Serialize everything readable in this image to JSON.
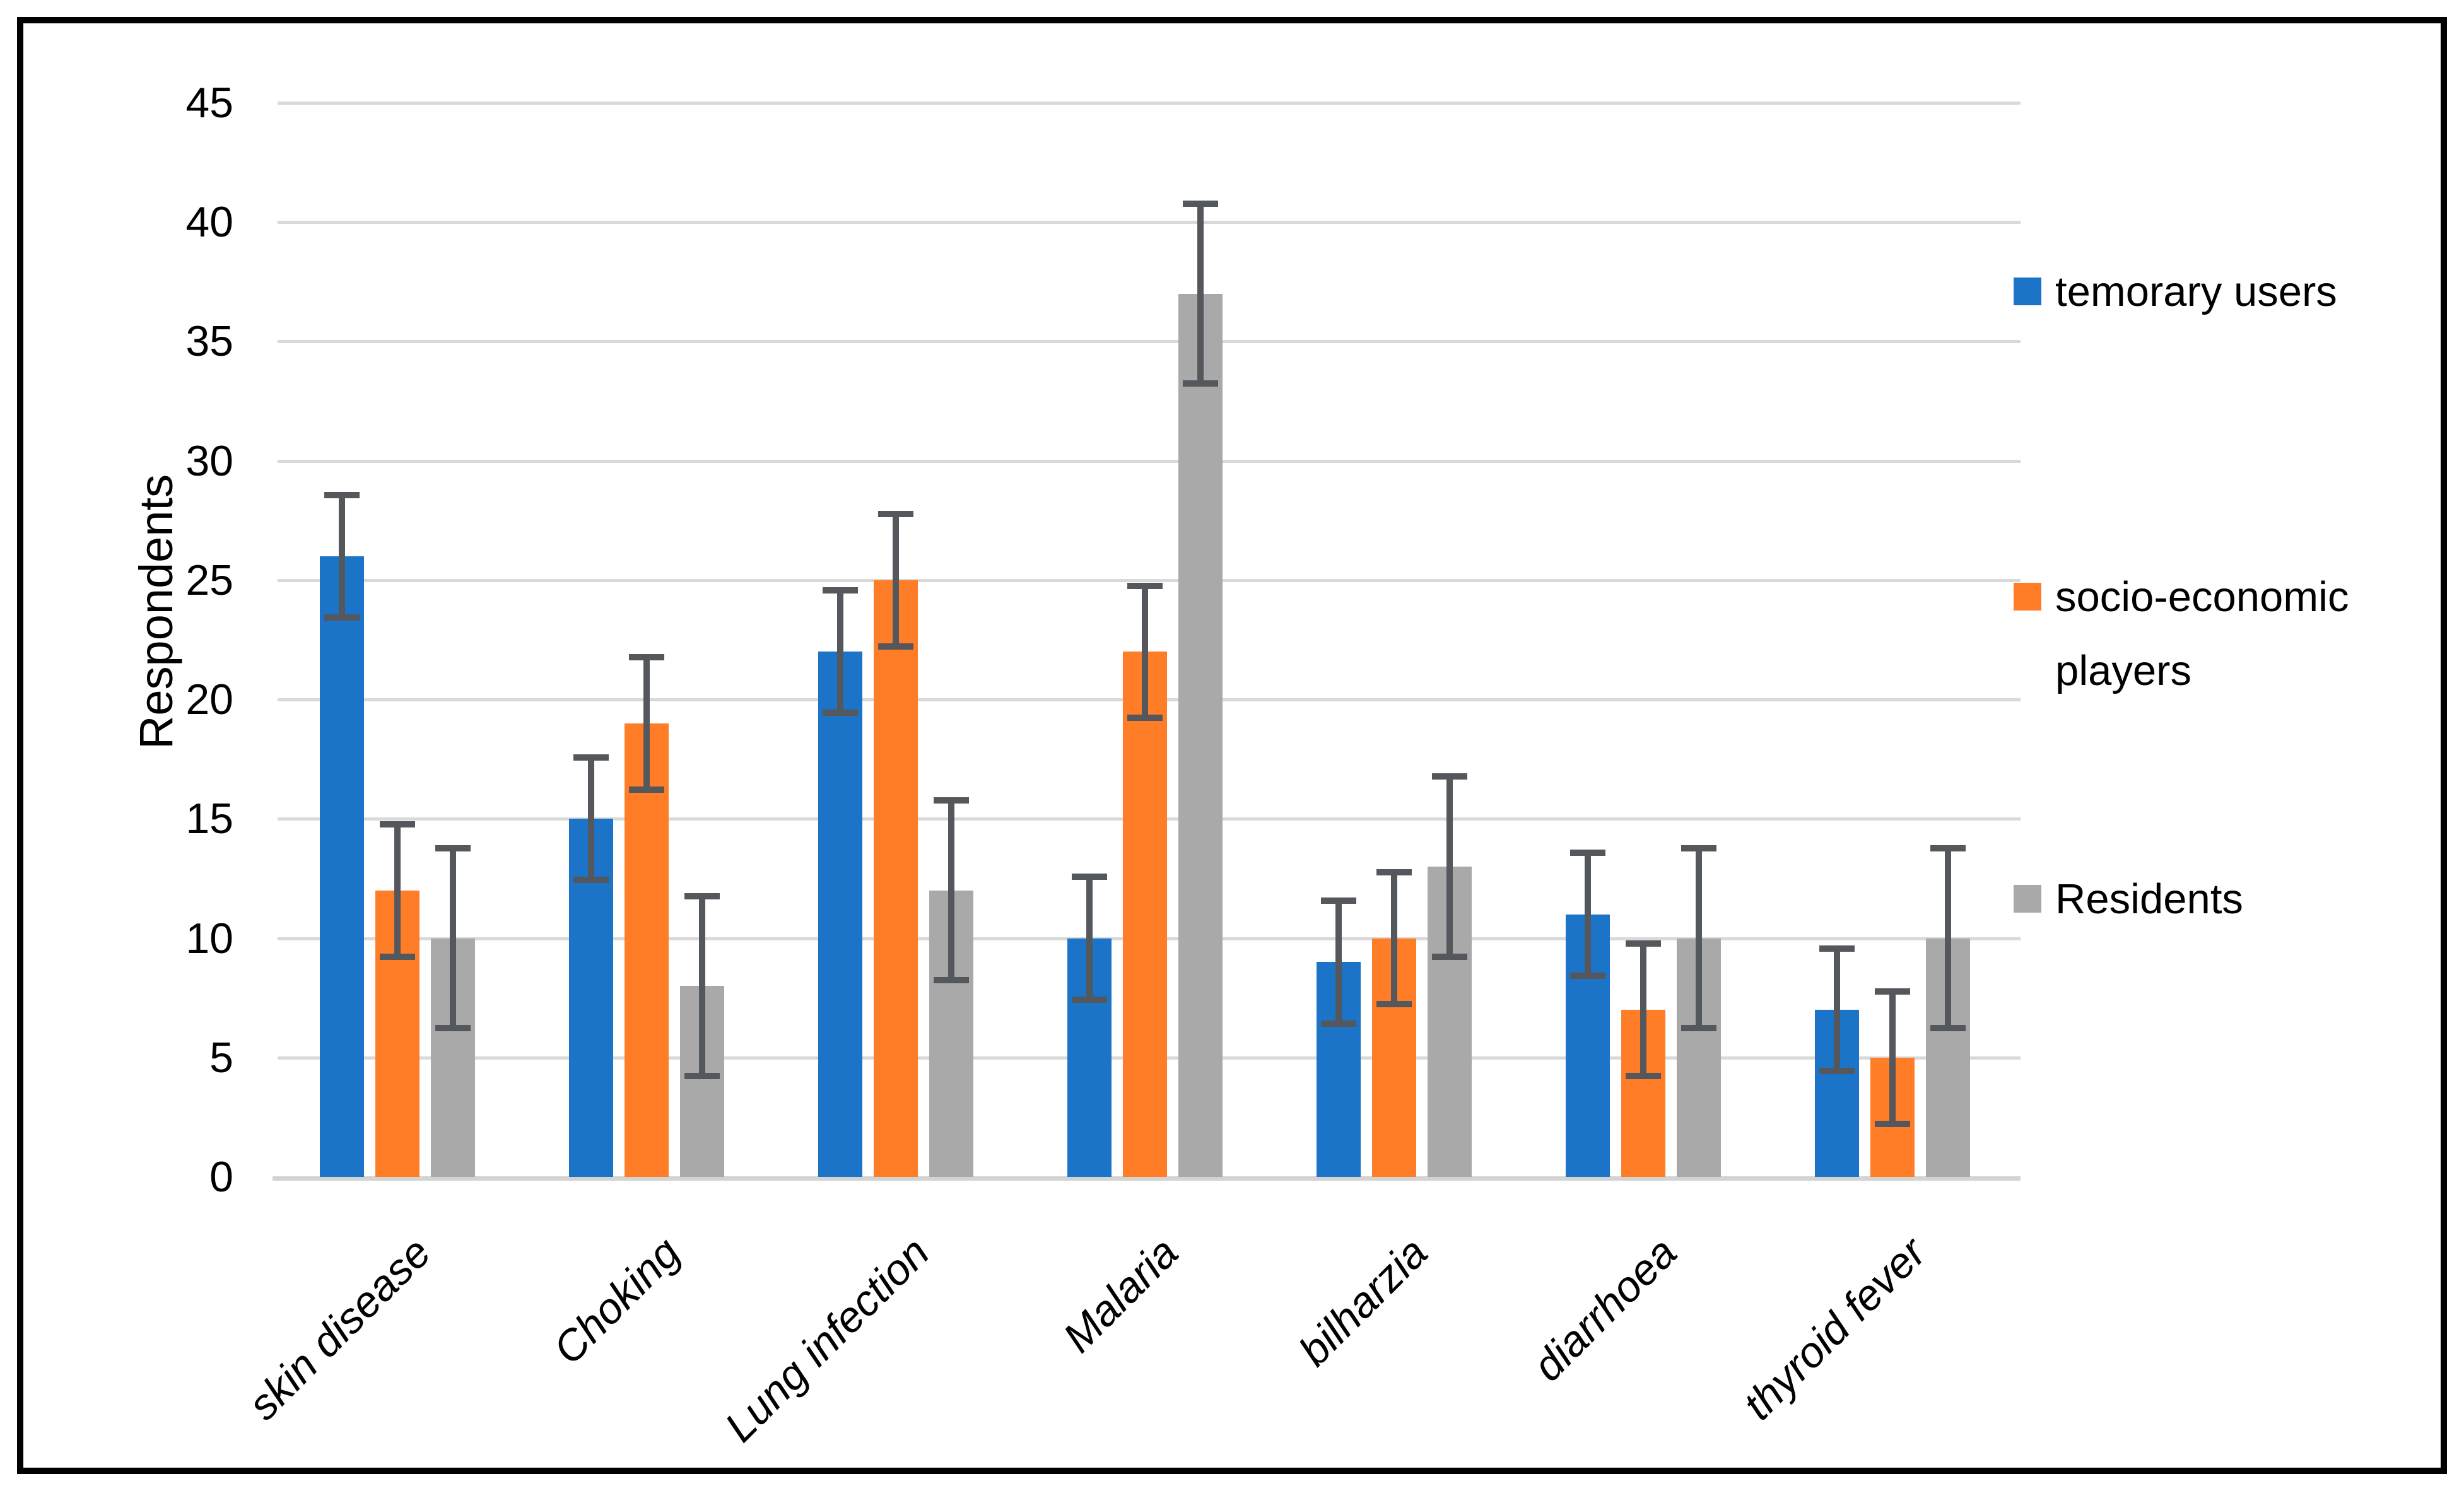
{
  "chart_data": {
    "type": "bar",
    "title": "",
    "categories": [
      "skin disease",
      "Choking",
      "Lung infection",
      "Malaria",
      "bilharzia",
      "diarrhoea",
      "thyroid fever"
    ],
    "series": [
      {
        "name": "temorary users",
        "color": "#1B74C8",
        "values": [
          26,
          15,
          22,
          10,
          9,
          11,
          7
        ],
        "error_plus_minus": 2.7
      },
      {
        "name": "socio-economic players",
        "color": "#FF7D26",
        "values": [
          12,
          19,
          25,
          22,
          10,
          7,
          5
        ],
        "error_plus_minus": 2.9
      },
      {
        "name": "Residents",
        "color": "#A9A9A9",
        "values": [
          10,
          8,
          12,
          37,
          13,
          10,
          10
        ],
        "error_plus_minus": 3.9
      }
    ],
    "xlabel": "",
    "ylabel": "Respondents",
    "ylim": [
      0,
      45
    ],
    "ytick_step": 5,
    "grid": true,
    "error_bars": true,
    "legend_position": "right",
    "colors": {
      "gridline": "#D9D9D9",
      "axis_line": "#D3D3D3",
      "error_bar": "#54575C",
      "text": "#000000",
      "frame_border": "#000000",
      "background": "#FFFFFF"
    }
  }
}
